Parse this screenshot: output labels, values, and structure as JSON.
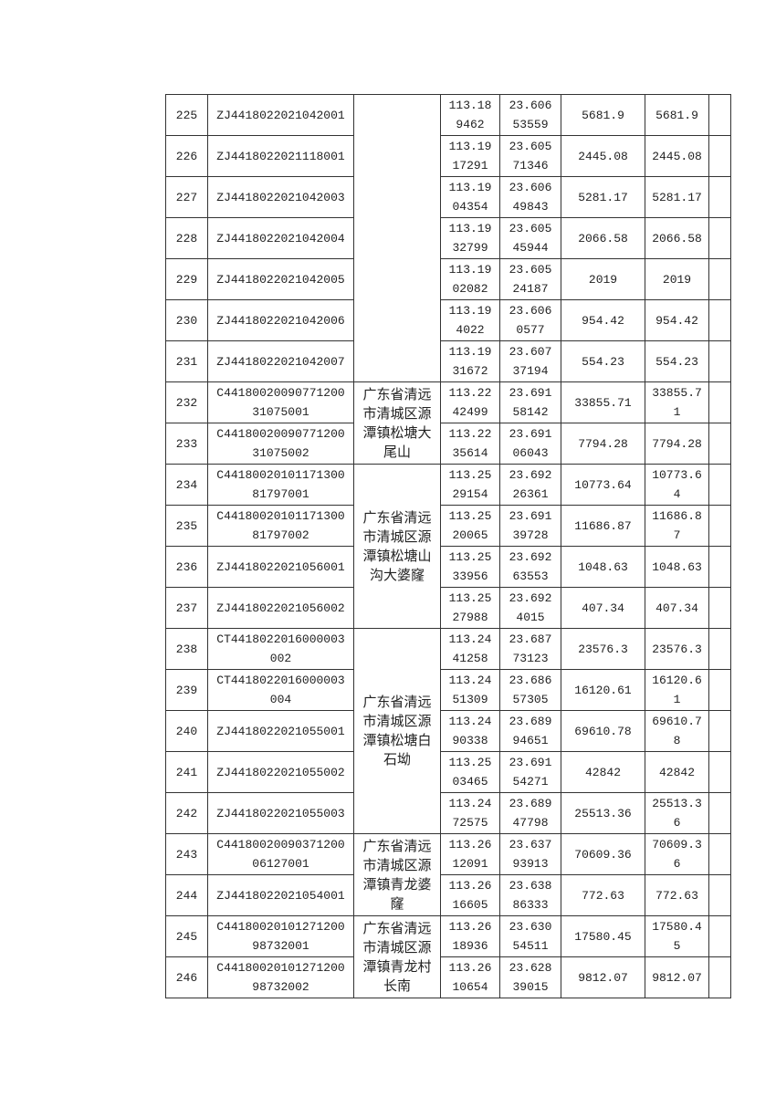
{
  "table": {
    "rows": [
      {
        "no": "225",
        "code": "ZJ4418022021042001",
        "lon": "113.189462",
        "lat": "23.60653559",
        "area1": "5681.9",
        "area2": "5681.9",
        "note": ""
      },
      {
        "no": "226",
        "code": "ZJ4418022021118001",
        "lon": "113.1917291",
        "lat": "23.60571346",
        "area1": "2445.08",
        "area2": "2445.08",
        "note": ""
      },
      {
        "no": "227",
        "code": "ZJ4418022021042003",
        "lon": "113.1904354",
        "lat": "23.60649843",
        "area1": "5281.17",
        "area2": "5281.17",
        "note": ""
      },
      {
        "no": "228",
        "code": "ZJ4418022021042004",
        "lon": "113.1932799",
        "lat": "23.60545944",
        "area1": "2066.58",
        "area2": "2066.58",
        "note": ""
      },
      {
        "no": "229",
        "code": "ZJ4418022021042005",
        "lon": "113.1902082",
        "lat": "23.60524187",
        "area1": "2019",
        "area2": "2019",
        "note": ""
      },
      {
        "no": "230",
        "code": "ZJ4418022021042006",
        "lon": "113.194022",
        "lat": "23.6060577",
        "area1": "954.42",
        "area2": "954.42",
        "note": ""
      },
      {
        "no": "231",
        "code": "ZJ4418022021042007",
        "lon": "113.1931672",
        "lat": "23.60737194",
        "area1": "554.23",
        "area2": "554.23",
        "note": ""
      },
      {
        "no": "232",
        "code": "C4418002009077120031075001",
        "lon": "113.2242499",
        "lat": "23.69158142",
        "area1": "33855.71",
        "area2": "33855.71",
        "note": ""
      },
      {
        "no": "233",
        "code": "C4418002009077120031075002",
        "lon": "113.2235614",
        "lat": "23.69106043",
        "area1": "7794.28",
        "area2": "7794.28",
        "note": ""
      },
      {
        "no": "234",
        "code": "C4418002010117130081797001",
        "lon": "113.2529154",
        "lat": "23.69226361",
        "area1": "10773.64",
        "area2": "10773.64",
        "note": ""
      },
      {
        "no": "235",
        "code": "C4418002010117130081797002",
        "lon": "113.2520065",
        "lat": "23.69139728",
        "area1": "11686.87",
        "area2": "11686.87",
        "note": ""
      },
      {
        "no": "236",
        "code": "ZJ4418022021056001",
        "lon": "113.2533956",
        "lat": "23.69263553",
        "area1": "1048.63",
        "area2": "1048.63",
        "note": ""
      },
      {
        "no": "237",
        "code": "ZJ4418022021056002",
        "lon": "113.2527988",
        "lat": "23.6924015",
        "area1": "407.34",
        "area2": "407.34",
        "note": ""
      },
      {
        "no": "238",
        "code": "CT4418022016000003002",
        "lon": "113.2441258",
        "lat": "23.68773123",
        "area1": "23576.3",
        "area2": "23576.3",
        "note": ""
      },
      {
        "no": "239",
        "code": "CT4418022016000003004",
        "lon": "113.2451309",
        "lat": "23.68657305",
        "area1": "16120.61",
        "area2": "16120.61",
        "note": ""
      },
      {
        "no": "240",
        "code": "ZJ4418022021055001",
        "lon": "113.2490338",
        "lat": "23.68994651",
        "area1": "69610.78",
        "area2": "69610.78",
        "note": ""
      },
      {
        "no": "241",
        "code": "ZJ4418022021055002",
        "lon": "113.2503465",
        "lat": "23.69154271",
        "area1": "42842",
        "area2": "42842",
        "note": ""
      },
      {
        "no": "242",
        "code": "ZJ4418022021055003",
        "lon": "113.2472575",
        "lat": "23.68947798",
        "area1": "25513.36",
        "area2": "25513.36",
        "note": ""
      },
      {
        "no": "243",
        "code": "C4418002009037120006127001",
        "lon": "113.2612091",
        "lat": "23.63793913",
        "area1": "70609.36",
        "area2": "70609.36",
        "note": ""
      },
      {
        "no": "244",
        "code": "ZJ4418022021054001",
        "lon": "113.2616605",
        "lat": "23.63886333",
        "area1": "772.63",
        "area2": "772.63",
        "note": ""
      },
      {
        "no": "245",
        "code": "C4418002010127120098732001",
        "lon": "113.2618936",
        "lat": "23.63054511",
        "area1": "17580.45",
        "area2": "17580.45",
        "note": ""
      },
      {
        "no": "246",
        "code": "C4418002010127120098732002",
        "lon": "113.2610654",
        "lat": "23.62839015",
        "area1": "9812.07",
        "area2": "9812.07",
        "note": ""
      }
    ],
    "locations": [
      {
        "start": 0,
        "span": 7,
        "text": ""
      },
      {
        "start": 7,
        "span": 2,
        "text": "广东省清远市清城区源潭镇松塘大尾山"
      },
      {
        "start": 9,
        "span": 4,
        "text": "广东省清远市清城区源潭镇松塘山沟大婆窿"
      },
      {
        "start": 13,
        "span": 5,
        "text": "广东省清远市清城区源潭镇松塘白石坳"
      },
      {
        "start": 18,
        "span": 2,
        "text": "广东省清远市清城区源潭镇青龙婆窿"
      },
      {
        "start": 20,
        "span": 2,
        "text": "广东省清远市清城区源潭镇青龙村长南"
      }
    ]
  }
}
